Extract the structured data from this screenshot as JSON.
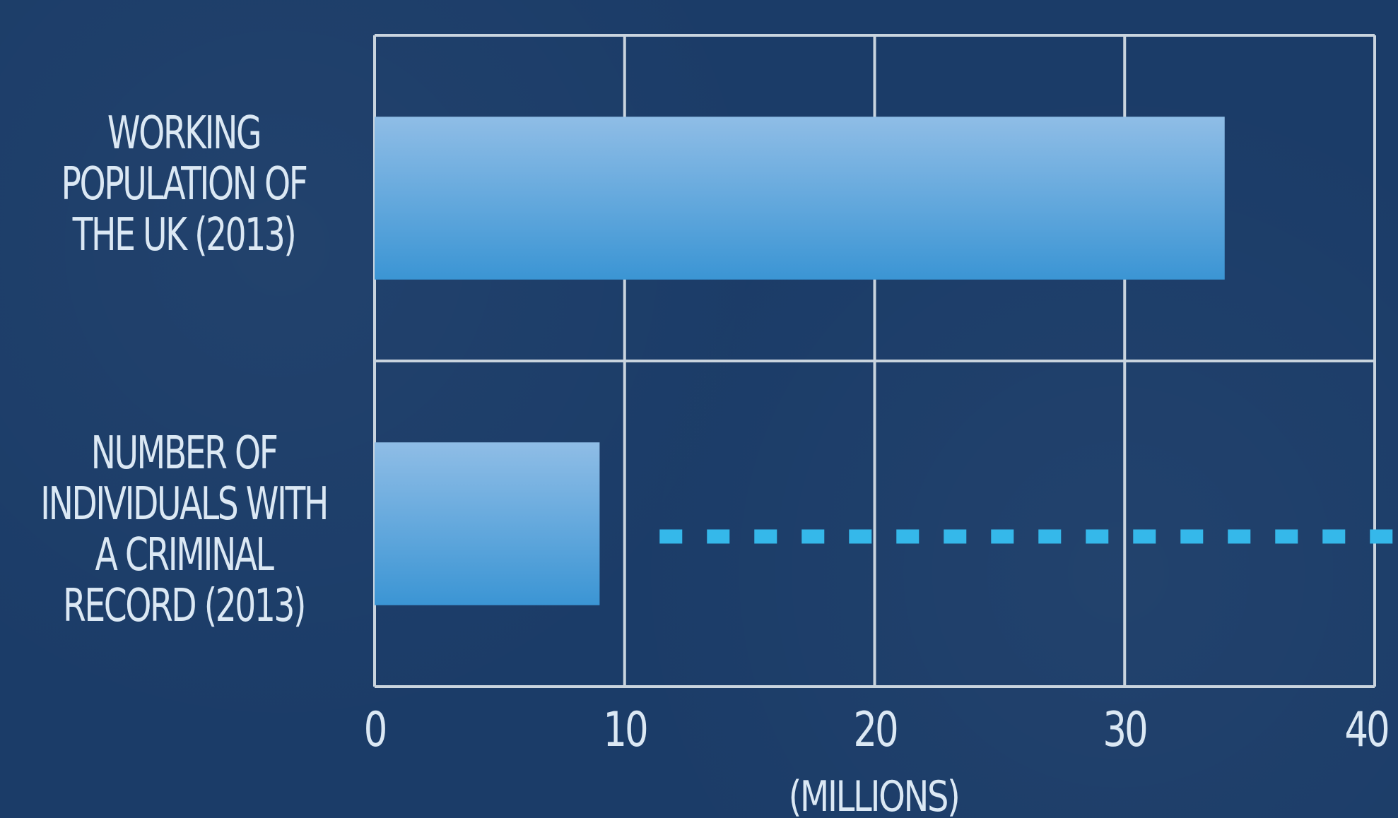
{
  "chart_data": {
    "type": "bar",
    "orientation": "horizontal",
    "categories": [
      "WORKING\nPOPULATION OF\nTHE UK (2013)",
      "NUMBER OF\nINDIVIDUALS WITH\nA CRIMINAL\nRECORD (2013)"
    ],
    "values": [
      34,
      9
    ],
    "xlabel": "(MILLIONS)",
    "xlim": [
      0,
      40
    ],
    "xticks": [
      "0",
      "10",
      "20",
      "30",
      "40"
    ],
    "grid": true,
    "legend": "none",
    "annotation": "dotted line continuing past end of second bar",
    "colors": {
      "bar_top": "#8fbde6",
      "bar_bottom": "#3b95d4",
      "grid": "#c9d4de",
      "dotted_line": "#35b8ea",
      "text": "#dbe8f4",
      "background": "#1b3c68"
    }
  }
}
